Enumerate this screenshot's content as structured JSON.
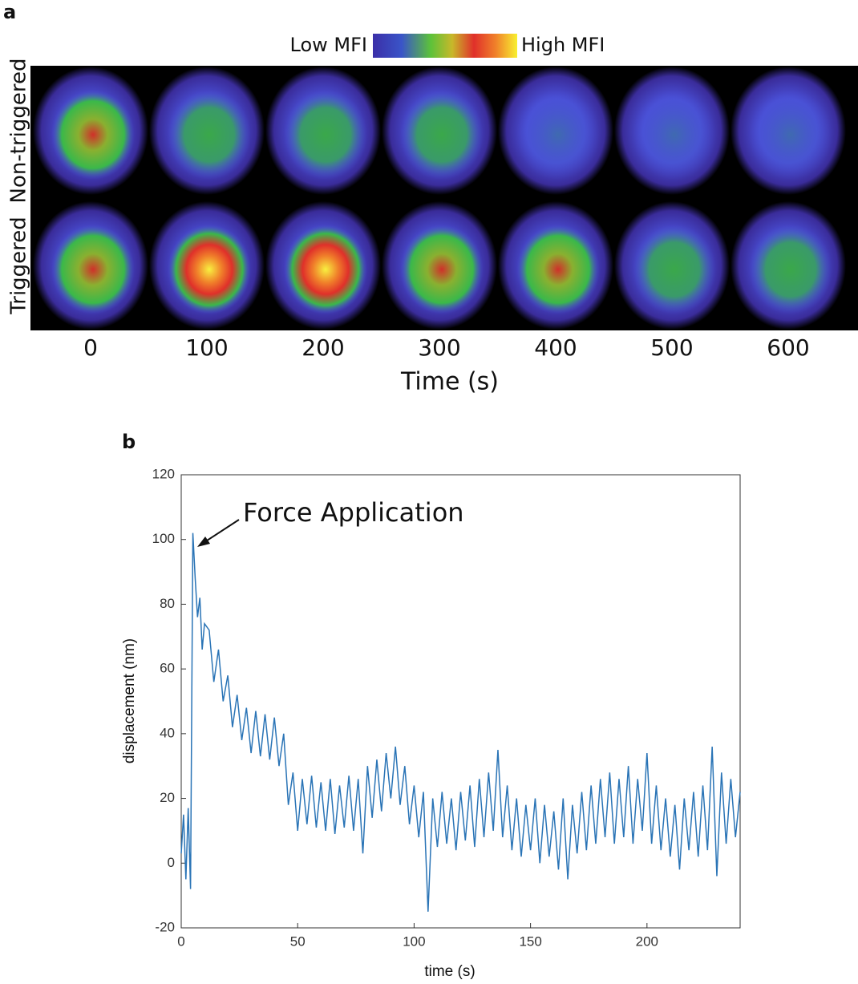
{
  "panel_a": {
    "label": "a",
    "colorbar_low": "Low MFI",
    "colorbar_high": "High MFI",
    "rows": [
      "Non-triggered",
      "Triggered"
    ],
    "categories": [
      "0",
      "100",
      "200",
      "300",
      "400",
      "500",
      "600"
    ],
    "x_label": "Time (s)"
  },
  "chart_data": {
    "type": "line",
    "label": "b",
    "annotation": "Force Application",
    "x_label": "time (s)",
    "y_label": "displacement (nm)",
    "xlim": [
      0,
      240
    ],
    "ylim": [
      -20,
      120
    ],
    "xticks": [
      0,
      50,
      100,
      150,
      200
    ],
    "yticks": [
      -20,
      0,
      20,
      40,
      60,
      80,
      100,
      120
    ],
    "color": "#2a74b6",
    "x": [
      0,
      1,
      2,
      3,
      4,
      5,
      6,
      7,
      8,
      9,
      10,
      12,
      14,
      16,
      18,
      20,
      22,
      24,
      26,
      28,
      30,
      32,
      34,
      36,
      38,
      40,
      42,
      44,
      46,
      48,
      50,
      52,
      54,
      56,
      58,
      60,
      62,
      64,
      66,
      68,
      70,
      72,
      74,
      76,
      78,
      80,
      82,
      84,
      86,
      88,
      90,
      92,
      94,
      96,
      98,
      100,
      102,
      104,
      106,
      108,
      110,
      112,
      114,
      116,
      118,
      120,
      122,
      124,
      126,
      128,
      130,
      132,
      134,
      136,
      138,
      140,
      142,
      144,
      146,
      148,
      150,
      152,
      154,
      156,
      158,
      160,
      162,
      164,
      166,
      168,
      170,
      172,
      174,
      176,
      178,
      180,
      182,
      184,
      186,
      188,
      190,
      192,
      194,
      196,
      198,
      200,
      202,
      204,
      206,
      208,
      210,
      212,
      214,
      216,
      218,
      220,
      222,
      224,
      226,
      228,
      230,
      232,
      234,
      236,
      238,
      240
    ],
    "values": [
      3,
      15,
      -5,
      17,
      -8,
      102,
      88,
      76,
      82,
      66,
      74,
      72,
      56,
      66,
      50,
      58,
      42,
      52,
      38,
      48,
      34,
      47,
      33,
      46,
      32,
      45,
      30,
      40,
      18,
      28,
      10,
      26,
      12,
      27,
      11,
      25,
      10,
      26,
      9,
      24,
      11,
      27,
      10,
      26,
      3,
      30,
      14,
      32,
      16,
      34,
      20,
      36,
      18,
      30,
      12,
      24,
      8,
      22,
      -15,
      20,
      5,
      22,
      6,
      20,
      4,
      22,
      7,
      24,
      5,
      26,
      8,
      28,
      10,
      35,
      8,
      24,
      4,
      20,
      2,
      18,
      4,
      20,
      0,
      18,
      2,
      16,
      -2,
      20,
      -5,
      18,
      3,
      22,
      4,
      24,
      6,
      26,
      8,
      28,
      6,
      26,
      8,
      30,
      6,
      26,
      10,
      34,
      6,
      24,
      4,
      20,
      2,
      18,
      -2,
      20,
      4,
      22,
      2,
      24,
      4,
      36,
      -4,
      28,
      6,
      26,
      8,
      22
    ]
  }
}
